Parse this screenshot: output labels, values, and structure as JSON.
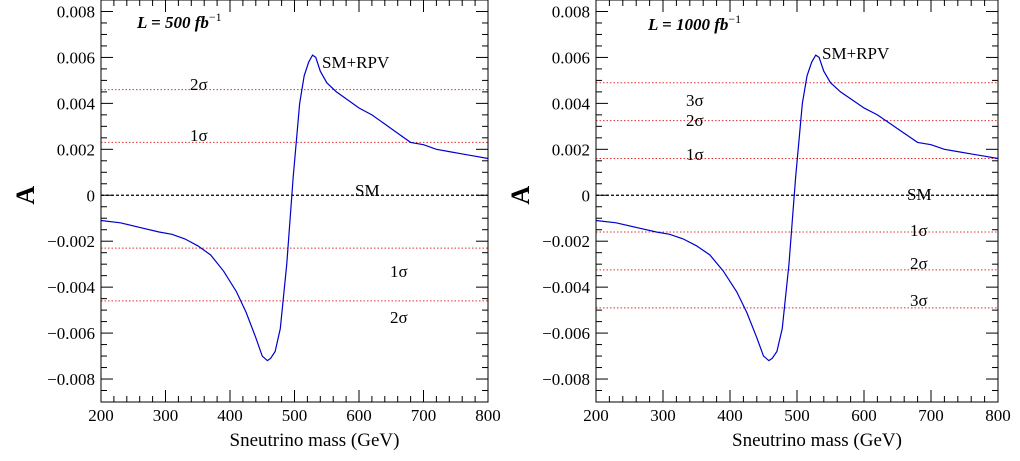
{
  "chart_data": [
    {
      "type": "line",
      "luminosity_label": {
        "prefix": "L = 500 fb",
        "sup": "−1"
      },
      "xlabel": "Sneutrino mass (GeV)",
      "ylabel": "A",
      "xlim": [
        200,
        800
      ],
      "ylim": [
        -0.009,
        0.0085
      ],
      "x_ticks": [
        "200",
        "300",
        "400",
        "500",
        "600",
        "700",
        "800"
      ],
      "y_ticks": [
        "0.008",
        "0.006",
        "0.004",
        "0.002",
        "0",
        "−0.002",
        "−0.004",
        "−0.006",
        "−0.008"
      ],
      "series": [
        {
          "name": "SM+RPV",
          "color": "#0000cc",
          "x": [
            200,
            230,
            260,
            290,
            310,
            330,
            350,
            370,
            390,
            410,
            425,
            440,
            450,
            458,
            463,
            470,
            478,
            488,
            498,
            508,
            515,
            522,
            528,
            533,
            540,
            550,
            565,
            580,
            600,
            620,
            640,
            660,
            680,
            700,
            720,
            740,
            760,
            780,
            800
          ],
          "y": [
            -0.0011,
            -0.0012,
            -0.0014,
            -0.0016,
            -0.0017,
            -0.0019,
            -0.0022,
            -0.0026,
            -0.0033,
            -0.0042,
            -0.0051,
            -0.0062,
            -0.007,
            -0.0072,
            -0.0071,
            -0.0068,
            -0.0058,
            -0.003,
            0.0008,
            0.004,
            0.0052,
            0.0058,
            0.0061,
            0.006,
            0.0054,
            0.0049,
            0.0045,
            0.0042,
            0.0038,
            0.0035,
            0.0031,
            0.0027,
            0.0023,
            0.0022,
            0.002,
            0.0019,
            0.0018,
            0.0017,
            0.0016
          ]
        }
      ],
      "sm_line": {
        "y": 0,
        "label": "SM",
        "color": "#000000"
      },
      "sigma_lines": [
        {
          "y": 0.0046,
          "label": "2σ"
        },
        {
          "y": 0.0023,
          "label": "1σ"
        },
        {
          "y": -0.0023,
          "label": "1σ"
        },
        {
          "y": -0.0046,
          "label": "2σ"
        }
      ],
      "sigma_color": "#e03030",
      "series_label": "SM+RPV"
    },
    {
      "type": "line",
      "luminosity_label": {
        "prefix": "L = 1000 fb",
        "sup": "−1"
      },
      "xlabel": "Sneutrino mass (GeV)",
      "ylabel": "A",
      "xlim": [
        200,
        800
      ],
      "ylim": [
        -0.009,
        0.0085
      ],
      "x_ticks": [
        "200",
        "300",
        "400",
        "500",
        "600",
        "700",
        "800"
      ],
      "y_ticks": [
        "0.008",
        "0.006",
        "0.004",
        "0.002",
        "0",
        "−0.002",
        "−0.004",
        "−0.006",
        "−0.008"
      ],
      "series": [
        {
          "name": "SM+RPV",
          "color": "#0000cc",
          "x": [
            200,
            230,
            260,
            290,
            310,
            330,
            350,
            370,
            390,
            410,
            425,
            440,
            450,
            458,
            463,
            470,
            478,
            488,
            498,
            508,
            515,
            522,
            528,
            533,
            540,
            550,
            565,
            580,
            600,
            620,
            640,
            660,
            680,
            700,
            720,
            740,
            760,
            780,
            800
          ],
          "y": [
            -0.0011,
            -0.0012,
            -0.0014,
            -0.0016,
            -0.0017,
            -0.0019,
            -0.0022,
            -0.0026,
            -0.0033,
            -0.0042,
            -0.0051,
            -0.0062,
            -0.007,
            -0.0072,
            -0.0071,
            -0.0068,
            -0.0058,
            -0.003,
            0.0008,
            0.004,
            0.0052,
            0.0058,
            0.0061,
            0.006,
            0.0054,
            0.0049,
            0.0045,
            0.0042,
            0.0038,
            0.0035,
            0.0031,
            0.0027,
            0.0023,
            0.0022,
            0.002,
            0.0019,
            0.0018,
            0.0017,
            0.0016
          ]
        }
      ],
      "sm_line": {
        "y": 0,
        "label": "SM",
        "color": "#000000"
      },
      "sigma_lines": [
        {
          "y": 0.0049,
          "label": "3σ"
        },
        {
          "y": 0.00325,
          "label": "2σ"
        },
        {
          "y": 0.0016,
          "label": "1σ"
        },
        {
          "y": -0.0016,
          "label": "1σ"
        },
        {
          "y": -0.00325,
          "label": "2σ"
        },
        {
          "y": -0.0049,
          "label": "3σ"
        }
      ],
      "sigma_color": "#e03030",
      "series_label": "SM+RPV"
    }
  ]
}
